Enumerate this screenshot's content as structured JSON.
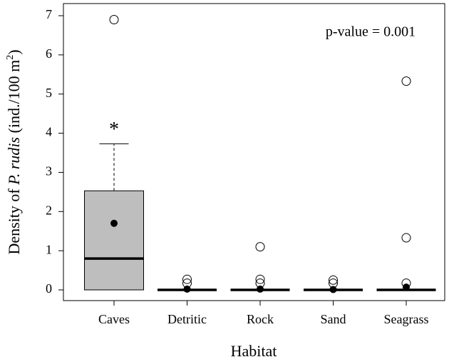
{
  "chart_data": {
    "type": "box",
    "x_label": "Habitat",
    "y_label_parts": [
      "Density of ",
      "P. rudis",
      " (ind./100 m",
      "2",
      ")"
    ],
    "annotation": "p-value = 0.001",
    "categories": [
      "Caves",
      "Detritic",
      "Rock",
      "Sand",
      "Seagrass"
    ],
    "boxes": [
      {
        "whislo": 0,
        "q1": 0,
        "median": 0.8,
        "q3": 2.53,
        "whishi": 3.73,
        "mean": 1.7,
        "outliers": [
          6.9
        ],
        "marker": "*"
      },
      {
        "whislo": 0,
        "q1": 0,
        "median": 0,
        "q3": 0,
        "whishi": 0,
        "mean": 0.02,
        "outliers": [
          0.27,
          0.17
        ]
      },
      {
        "whislo": 0,
        "q1": 0,
        "median": 0,
        "q3": 0,
        "whishi": 0,
        "mean": 0.02,
        "outliers": [
          1.1,
          0.27,
          0.17
        ]
      },
      {
        "whislo": 0,
        "q1": 0,
        "median": 0,
        "q3": 0,
        "whishi": 0,
        "mean": 0.01,
        "outliers": [
          0.25,
          0.17
        ]
      },
      {
        "whislo": 0,
        "q1": 0,
        "median": 0,
        "q3": 0,
        "whishi": 0,
        "mean": 0.07,
        "outliers": [
          5.33,
          1.33,
          0.17
        ]
      }
    ],
    "color": "#bebebe",
    "ylim": [
      0,
      7
    ],
    "yticks": [
      0,
      1,
      2,
      3,
      4,
      5,
      6,
      7
    ]
  }
}
